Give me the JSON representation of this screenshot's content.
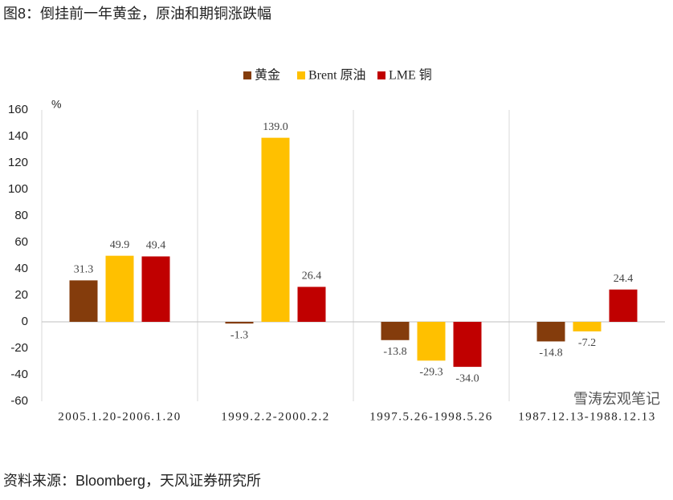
{
  "chart_data": {
    "type": "bar",
    "title": "图8：倒挂前一年黄金，原油和期铜涨跌幅",
    "y_unit": "%",
    "categories": [
      "2005.1.20-2006.1.20",
      "1999.2.2-2000.2.2",
      "1997.5.26-1998.5.26",
      "1987.12.13-1988.12.13"
    ],
    "series": [
      {
        "name": "黄金",
        "color": "#843C0C",
        "values": [
          31.3,
          -1.3,
          -13.8,
          -14.8
        ],
        "value_labels": [
          "31.3",
          "-1.3",
          "-13.8",
          "-14.8"
        ]
      },
      {
        "name": "Brent 原油",
        "color": "#FFC000",
        "values": [
          49.9,
          139,
          -29.3,
          -7.2
        ],
        "value_labels": [
          "49.9",
          "139.0",
          "-29.3",
          "-7.2"
        ]
      },
      {
        "name": "LME 铜",
        "color": "#C00000",
        "values": [
          49.4,
          26.4,
          -34,
          24.4
        ],
        "value_labels": [
          "49.4",
          "26.4",
          "-34.0",
          "24.4"
        ]
      }
    ],
    "ylim": [
      -60,
      160
    ],
    "yticks": [
      -60,
      -40,
      -20,
      0,
      20,
      40,
      60,
      80,
      100,
      120,
      140,
      160
    ],
    "legend": "top",
    "watermark": "雪涛宏观笔记",
    "source": "资料来源：Bloomberg，天风证券研究所"
  }
}
